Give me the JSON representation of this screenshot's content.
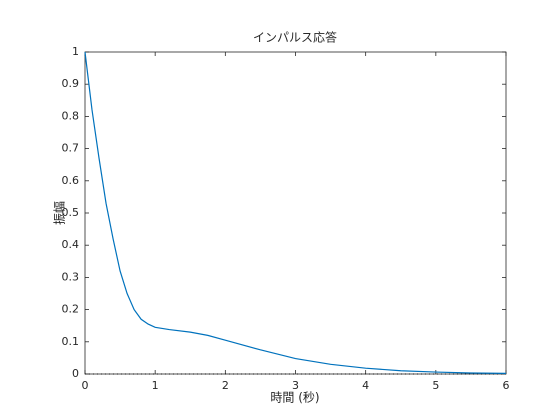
{
  "chart_data": {
    "type": "line",
    "title": "インパルス応答",
    "xlabel": "時間 (秒)",
    "ylabel": "振幅",
    "x": [
      0,
      0.1,
      0.2,
      0.3,
      0.4,
      0.5,
      0.6,
      0.7,
      0.8,
      0.9,
      1,
      1.2,
      1.5,
      1.75,
      2,
      2.5,
      3,
      3.5,
      4,
      4.5,
      5,
      5.5,
      6
    ],
    "series": [
      {
        "color": "#0072bd",
        "values": [
          1,
          0.82,
          0.67,
          0.53,
          0.42,
          0.32,
          0.25,
          0.2,
          0.17,
          0.155,
          0.145,
          0.138,
          0.13,
          0.12,
          0.105,
          0.075,
          0.048,
          0.03,
          0.018,
          0.01,
          0.006,
          0.003,
          0.002
        ]
      }
    ],
    "xlim": [
      0,
      6
    ],
    "xticks": [
      0,
      1,
      2,
      3,
      4,
      5,
      6
    ],
    "ylim": [
      0,
      1
    ],
    "yticks": [
      0,
      0.1,
      0.2,
      0.3,
      0.4,
      0.5,
      0.6,
      0.7,
      0.8,
      0.9,
      1
    ]
  }
}
